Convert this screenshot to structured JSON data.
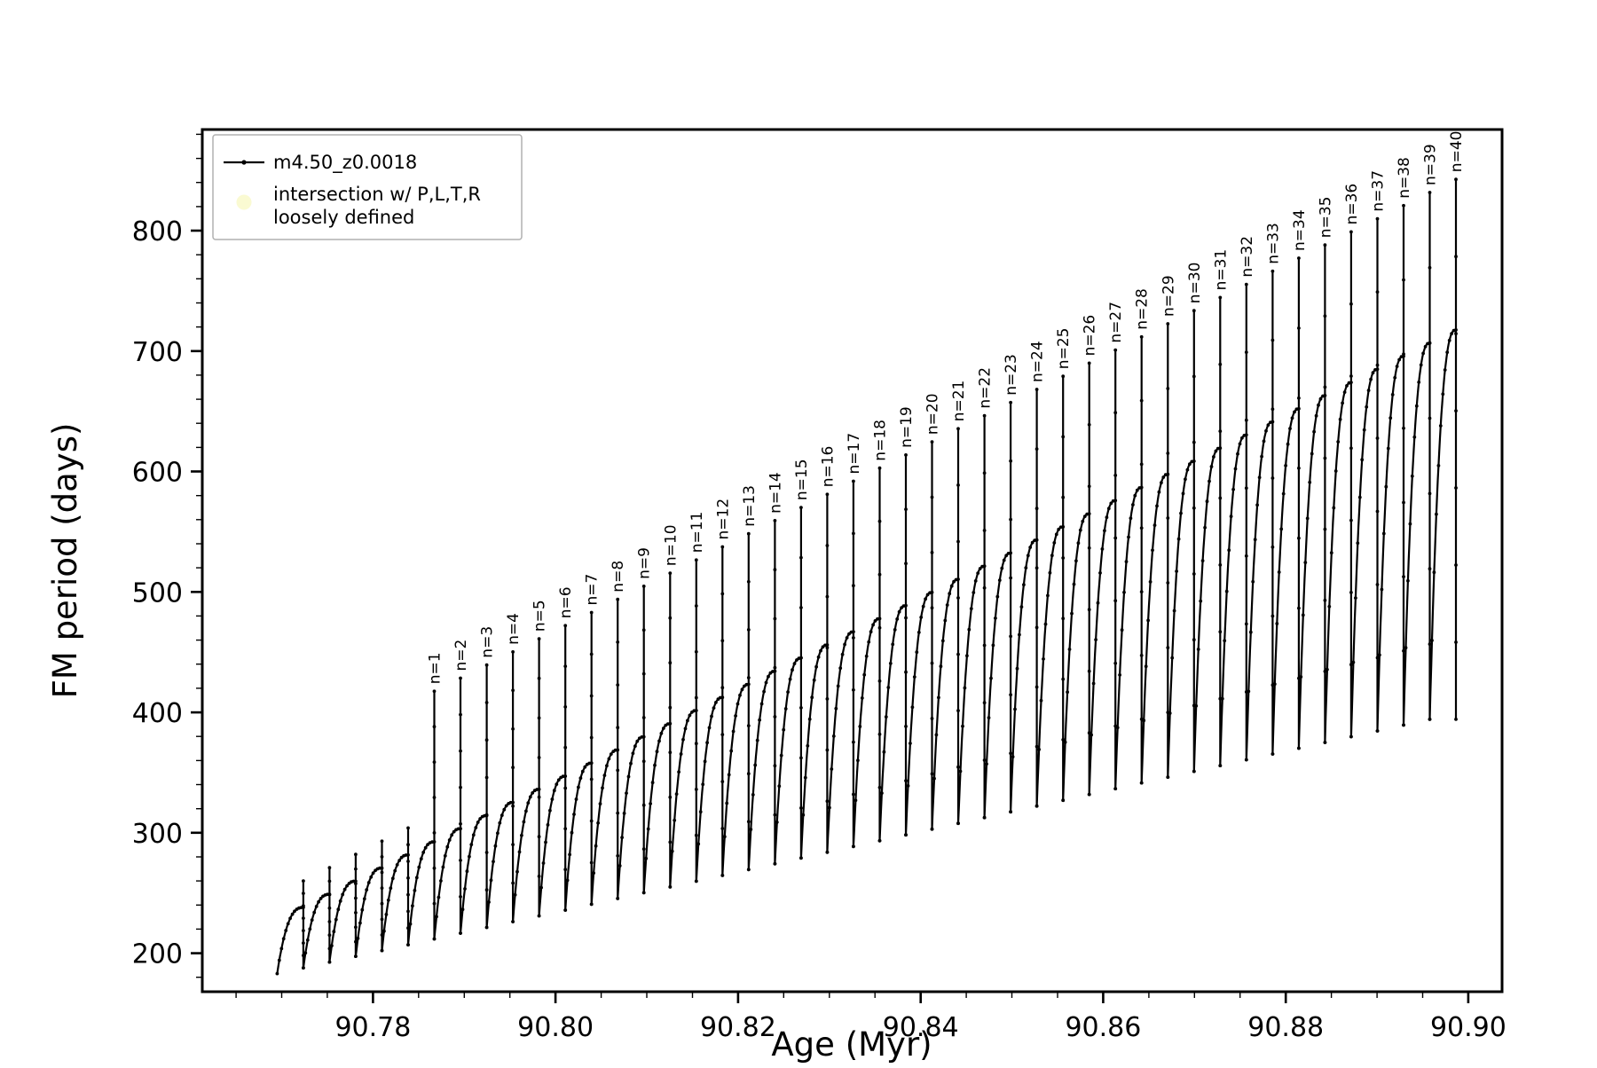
{
  "figure": {
    "background": "#ffffff"
  },
  "legend": {
    "series_label": "m4.50_z0.0018",
    "intersection_label_line1": "intersection w/ P,L,T,R",
    "intersection_label_line2": "loosely defined",
    "intersection_marker_color": "#fafad2",
    "line_color": "#000000"
  },
  "chart_data": {
    "type": "line",
    "title": "",
    "xlabel": "Age (Myr)",
    "ylabel": "FM period (days)",
    "xlim": [
      90.7613,
      90.9037
    ],
    "ylim": [
      168,
      884
    ],
    "x_ticks": [
      90.78,
      90.8,
      90.82,
      90.84,
      90.86,
      90.88,
      90.9
    ],
    "x_tick_labels": [
      "90.78",
      "90.80",
      "90.82",
      "90.84",
      "90.86",
      "90.88",
      "90.90"
    ],
    "y_ticks": [
      200,
      300,
      400,
      500,
      600,
      700,
      800
    ],
    "y_tick_labels": [
      "200",
      "300",
      "400",
      "500",
      "600",
      "700",
      "800"
    ],
    "x_minor_step": 0.005,
    "y_minor_step": 20,
    "grid": false,
    "legend_position": "upper left",
    "series": [
      {
        "name": "m4.50_z0.0018",
        "color": "#000000",
        "marker": "point"
      },
      {
        "name": "intersection w/ P,L,T,R loosely defined",
        "color": "#fafad2",
        "marker": "circle"
      }
    ],
    "arches": {
      "x_start": [
        90.7695,
        90.77237,
        90.77524,
        90.77811,
        90.78098,
        90.78385,
        90.78672,
        90.78959,
        90.79246,
        90.79533,
        90.7982,
        90.80107,
        90.80394,
        90.80681,
        90.80968,
        90.81255,
        90.81542,
        90.81829,
        90.82116,
        90.82403,
        90.8269,
        90.82977,
        90.83264,
        90.83551,
        90.83838,
        90.84125,
        90.84412,
        90.84699,
        90.84986,
        90.85273,
        90.8556,
        90.85847,
        90.86134,
        90.86421,
        90.86708,
        90.86995,
        90.87282,
        90.87569,
        90.87856,
        90.88143,
        90.8843,
        90.88717,
        90.89004,
        90.89291,
        90.89578
      ],
      "x_end_last": 90.89865,
      "y_min": [
        183.0,
        187.8,
        192.6,
        197.4,
        202.2,
        207.0,
        211.8,
        216.6,
        221.4,
        226.2,
        231.0,
        235.8,
        240.6,
        245.4,
        250.2,
        255.0,
        259.8,
        264.6,
        269.4,
        274.2,
        279.0,
        283.8,
        288.6,
        293.4,
        298.2,
        303.0,
        307.8,
        312.6,
        317.4,
        322.2,
        327.0,
        331.8,
        336.6,
        341.4,
        346.2,
        351.0,
        355.8,
        360.6,
        365.4,
        370.2,
        375.0,
        379.8,
        384.6,
        389.4,
        394.2
      ],
      "y_peak": [
        238.0,
        248.9,
        259.8,
        270.7,
        281.6,
        292.5,
        303.4,
        314.3,
        325.2,
        336.1,
        347.0,
        357.9,
        368.8,
        379.7,
        390.6,
        401.5,
        412.4,
        423.3,
        434.2,
        445.1,
        456.0,
        466.9,
        477.8,
        488.7,
        499.6,
        510.5,
        521.4,
        532.3,
        543.2,
        554.1,
        565.0,
        575.9,
        586.8,
        597.7,
        608.6,
        619.5,
        630.4,
        641.3,
        652.2,
        663.1,
        674.0,
        684.9,
        695.8,
        706.7,
        717.6
      ],
      "y_spike": [
        260,
        271,
        282,
        293,
        304,
        417.5,
        428.4,
        439.3,
        450.2,
        461.1,
        472.0,
        482.9,
        493.8,
        504.7,
        515.6,
        526.5,
        537.4,
        548.3,
        559.2,
        570.1,
        581.0,
        591.9,
        602.8,
        613.7,
        624.6,
        635.5,
        646.4,
        657.3,
        668.2,
        679.1,
        690.0,
        700.9,
        711.8,
        722.7,
        733.6,
        744.5,
        755.4,
        766.3,
        777.2,
        788.1,
        799.0,
        809.9,
        820.8,
        831.7,
        842.6
      ],
      "labels": [
        null,
        null,
        null,
        null,
        null,
        "n=1",
        "n=2",
        "n=3",
        "n=4",
        "n=5",
        "n=6",
        "n=7",
        "n=8",
        "n=9",
        "n=10",
        "n=11",
        "n=12",
        "n=13",
        "n=14",
        "n=15",
        "n=16",
        "n=17",
        "n=18",
        "n=19",
        "n=20",
        "n=21",
        "n=22",
        "n=23",
        "n=24",
        "n=25",
        "n=26",
        "n=27",
        "n=28",
        "n=29",
        "n=30",
        "n=31",
        "n=32",
        "n=33",
        "n=34",
        "n=35",
        "n=36",
        "n=37",
        "n=38",
        "n=39",
        "n=40"
      ]
    }
  }
}
